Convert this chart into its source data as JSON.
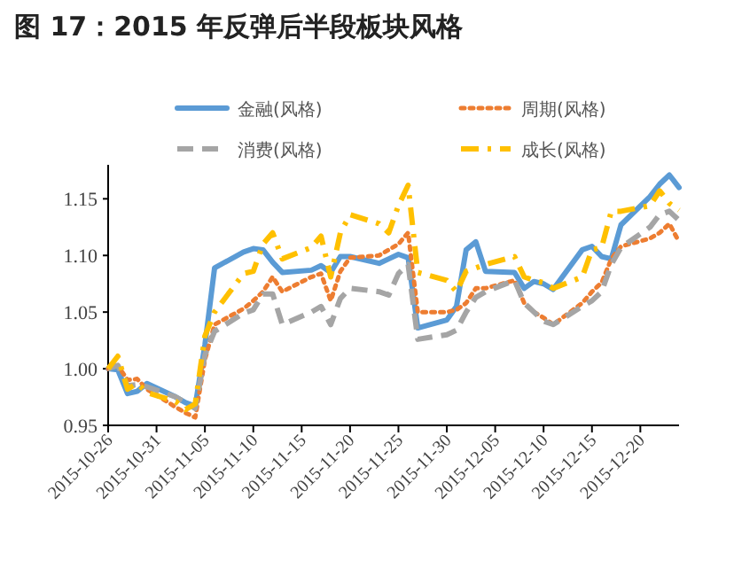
{
  "chart_data": {
    "type": "line",
    "title": "图 17：2015 年反弹后半段板块风格",
    "x": [
      "2015-10-26",
      "2015-10-27",
      "2015-10-28",
      "2015-10-29",
      "2015-10-30",
      "2015-11-02",
      "2015-11-03",
      "2015-11-04",
      "2015-11-05",
      "2015-11-06",
      "2015-11-09",
      "2015-11-10",
      "2015-11-11",
      "2015-11-12",
      "2015-11-13",
      "2015-11-16",
      "2015-11-17",
      "2015-11-18",
      "2015-11-19",
      "2015-11-20",
      "2015-11-23",
      "2015-11-24",
      "2015-11-25",
      "2015-11-26",
      "2015-11-27",
      "2015-11-30",
      "2015-12-01",
      "2015-12-02",
      "2015-12-03",
      "2015-12-04",
      "2015-12-07",
      "2015-12-08",
      "2015-12-09",
      "2015-12-10",
      "2015-12-11",
      "2015-12-14",
      "2015-12-15",
      "2015-12-16",
      "2015-12-17",
      "2015-12-18",
      "2015-12-21",
      "2015-12-22",
      "2015-12-23",
      "2015-12-24"
    ],
    "series": [
      {
        "name": "金融(风格)",
        "color": "#5b9bd5",
        "line_style": "solid",
        "values": [
          1.0,
          0.999,
          0.978,
          0.98,
          0.987,
          0.975,
          0.97,
          0.967,
          1.021,
          1.089,
          1.103,
          1.106,
          1.105,
          1.094,
          1.085,
          1.087,
          1.091,
          1.085,
          1.099,
          1.099,
          1.093,
          1.097,
          1.101,
          1.098,
          1.036,
          1.043,
          1.055,
          1.105,
          1.112,
          1.086,
          1.085,
          1.071,
          1.077,
          1.075,
          1.07,
          1.105,
          1.108,
          1.099,
          1.097,
          1.127,
          1.152,
          1.163,
          1.171,
          1.16
        ]
      },
      {
        "name": "周期(风格)",
        "color": "#ed7d31",
        "line_style": "dotted",
        "values": [
          1.0,
          1.003,
          0.99,
          0.991,
          0.982,
          0.966,
          0.961,
          0.957,
          1.008,
          1.039,
          1.053,
          1.06,
          1.068,
          1.081,
          1.068,
          1.081,
          1.084,
          1.06,
          1.086,
          1.098,
          1.1,
          1.105,
          1.11,
          1.12,
          1.05,
          1.05,
          1.052,
          1.058,
          1.071,
          1.071,
          1.078,
          1.058,
          1.05,
          1.045,
          1.039,
          1.058,
          1.068,
          1.076,
          1.097,
          1.108,
          1.115,
          1.12,
          1.128,
          1.112
        ]
      },
      {
        "name": "消费(风格)",
        "color": "#a5a5a5",
        "line_style": "dashed",
        "values": [
          1.0,
          1.003,
          0.985,
          0.986,
          0.984,
          0.975,
          0.97,
          0.965,
          1.012,
          1.033,
          1.049,
          1.052,
          1.066,
          1.066,
          1.039,
          1.05,
          1.055,
          1.039,
          1.062,
          1.071,
          1.068,
          1.065,
          1.084,
          1.092,
          1.026,
          1.03,
          1.034,
          1.05,
          1.063,
          1.068,
          1.078,
          1.058,
          1.05,
          1.042,
          1.039,
          1.055,
          1.06,
          1.068,
          1.092,
          1.107,
          1.125,
          1.136,
          1.139,
          1.131
        ]
      },
      {
        "name": "成长(风格)",
        "color": "#ffc000",
        "line_style": "dashdot",
        "values": [
          1.0,
          1.011,
          0.982,
          0.987,
          0.979,
          0.971,
          0.964,
          0.969,
          1.029,
          1.05,
          1.084,
          1.086,
          1.11,
          1.12,
          1.097,
          1.107,
          1.117,
          1.081,
          1.12,
          1.136,
          1.128,
          1.12,
          1.144,
          1.162,
          1.085,
          1.078,
          1.068,
          1.086,
          1.089,
          1.092,
          1.099,
          1.081,
          1.078,
          1.076,
          1.071,
          1.081,
          1.105,
          1.107,
          1.139,
          1.139,
          1.144,
          1.157,
          1.146,
          1.14
        ]
      }
    ],
    "xlim": [
      "2015-10-26",
      "2015-12-24"
    ],
    "xticks": [
      "2015-10-26",
      "2015-10-31",
      "2015-11-05",
      "2015-11-10",
      "2015-11-15",
      "2015-11-20",
      "2015-11-25",
      "2015-11-30",
      "2015-12-05",
      "2015-12-10",
      "2015-12-15",
      "2015-12-20"
    ],
    "ylim": [
      0.95,
      1.18
    ],
    "yticks": [
      0.95,
      {
        "value": 1,
        "label": "1.00"
      },
      {
        "value": 1.05,
        "label": "1.05"
      },
      {
        "value": 1.1,
        "label": "1.10"
      },
      1.15
    ],
    "legend": "top",
    "grid": false
  }
}
